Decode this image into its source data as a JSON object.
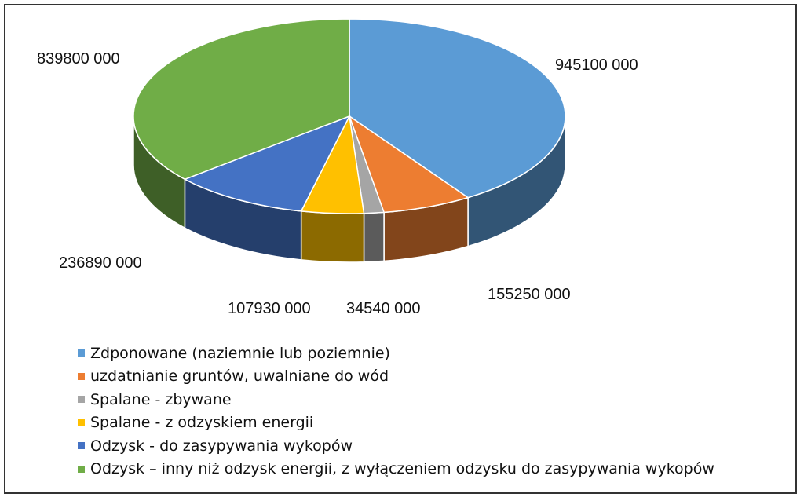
{
  "chart_data": {
    "type": "pie",
    "style": "3d",
    "legend_position": "bottom-left",
    "categories": [
      "Zdponowane (naziemnie lub poziemnie)",
      "uzdatnianie gruntów, uwalniane do wód",
      "Spalane - zbywane",
      "Spalane - z odzyskiem energii",
      "Odzysk - do zasypywania wykopów",
      "Odzysk – inny niż odzysk energii, z wyłączeniem odzysku do zasypywania wykopów"
    ],
    "values": [
      945100000,
      155250000,
      34540000,
      107930000,
      236890000,
      839800000
    ],
    "data_labels": [
      "945100 000",
      "155250 000",
      "34540 000",
      "107930 000",
      "236890 000",
      "839800 000"
    ],
    "colors": [
      "#5B9BD5",
      "#ED7D31",
      "#A5A5A5",
      "#FFC000",
      "#4472C4",
      "#70AD47"
    ]
  }
}
